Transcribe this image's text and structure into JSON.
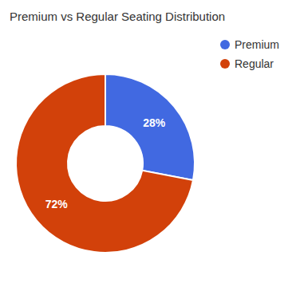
{
  "chart_data": {
    "type": "donut",
    "title": "Premium vs Regular Seating Distribution",
    "categories": [
      "Premium",
      "Regular"
    ],
    "values": [
      28,
      72
    ],
    "value_labels": [
      "28%",
      "72%"
    ],
    "colors": [
      "#4169E1",
      "#D2410A"
    ],
    "data_labels": true,
    "legend": "upper right"
  }
}
